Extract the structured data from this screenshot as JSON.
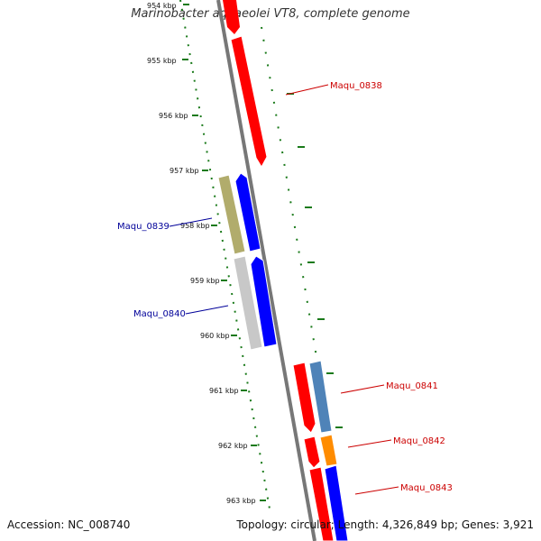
{
  "title": "Marinobacter aquaeolei VT8, complete genome",
  "footer": {
    "accession": "Accession: NC_008740",
    "summary": "Topology: circular; Length: 4,326,849 bp; Genes: 3,921"
  },
  "ticks": [
    "954 kbp",
    "955 kbp",
    "956 kbp",
    "957 kbp",
    "958 kbp",
    "959 kbp",
    "960 kbp",
    "961 kbp",
    "962 kbp",
    "963 kbp"
  ],
  "genes": [
    {
      "label": "Maqu_0838",
      "strand": "plus",
      "color": "#cc0000"
    },
    {
      "label": "Maqu_0839",
      "strand": "minus",
      "color": "#000099"
    },
    {
      "label": "Maqu_0840",
      "strand": "minus",
      "color": "#000099"
    },
    {
      "label": "Maqu_0841",
      "strand": "plus",
      "color": "#cc0000"
    },
    {
      "label": "Maqu_0842",
      "strand": "plus",
      "color": "#cc0000"
    },
    {
      "label": "Maqu_0843",
      "strand": "plus",
      "color": "#cc0000"
    }
  ],
  "colors": {
    "backbone": "#777777",
    "tick_ring": "#1a7a1a",
    "cds_forward": "#ff0000",
    "cds_reverse": "#0000ff",
    "feature_olive": "#b1ac6c",
    "feature_gray": "#c8c8c8",
    "feature_steelblue": "#4f83b8",
    "feature_orange": "#ff8c00"
  }
}
